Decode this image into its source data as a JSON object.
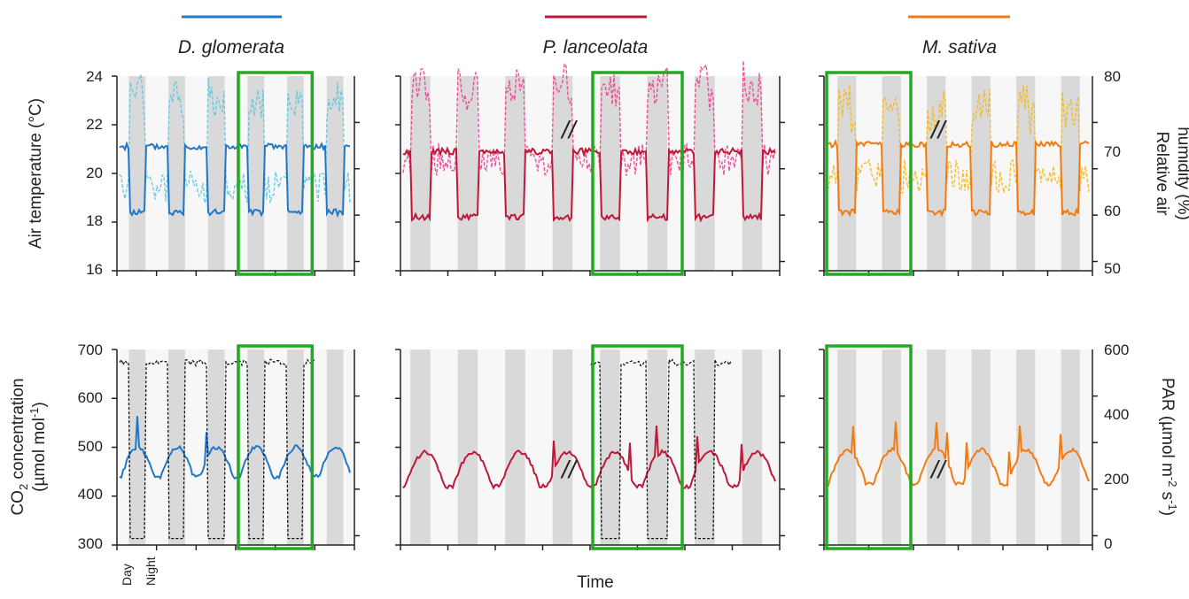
{
  "figure": {
    "x_axis_label": "Time",
    "left_top_axis_label": "Air temperature (°C)",
    "right_top_axis_label_line1": "Relative air",
    "right_top_axis_label_line2": "humidity (%)",
    "left_bottom_axis_label_line1_pre": "CO",
    "left_bottom_axis_label_line1_sub": "2",
    "left_bottom_axis_label_line1_post": " concentration",
    "left_bottom_axis_label_line2_pre": "(µmol mol",
    "left_bottom_axis_label_line2_sup": "-1",
    "left_bottom_axis_label_line2_post": ")",
    "right_bottom_axis_label_pre": "PAR (µmol m",
    "right_bottom_axis_label_sup1": "-2",
    "right_bottom_axis_label_mid": " s",
    "right_bottom_axis_label_sup2": "-1",
    "right_bottom_axis_label_post": ")",
    "day_label": "Day",
    "night_label": "Night",
    "break_mark": "//"
  },
  "colors": {
    "night_band": "#d9d9d9",
    "day_band": "#f7f7f7",
    "highlight_box": "#22aa22",
    "par_line": "#111111"
  },
  "chart_data": [
    {
      "type": "line",
      "species": "D. glomerata",
      "color": "#1f78c8",
      "light_color": "#5fc8e0",
      "row": "top",
      "y_left_ticks": [
        "24",
        "22",
        "20",
        "18",
        "16"
      ],
      "ylim_left": [
        16,
        24
      ],
      "ylim_right": [
        45,
        80
      ],
      "highlight_days": [
        3,
        4
      ],
      "series": [
        {
          "name": "Air temperature",
          "axis": "left",
          "day": 21.1,
          "night": 18.4
        },
        {
          "name": "Relative air humidity",
          "axis": "right",
          "day": 60,
          "night": 74
        }
      ]
    },
    {
      "type": "line",
      "species": "P. lanceolata",
      "color": "#c01838",
      "light_color": "#f04090",
      "row": "top",
      "break_at_day": 3,
      "highlight_days": [
        4,
        5
      ],
      "ylim_left": [
        16,
        24
      ],
      "ylim_right": [
        45,
        80
      ],
      "series": [
        {
          "name": "Air temperature",
          "axis": "left",
          "day": 20.9,
          "night": 18.2
        },
        {
          "name": "Relative air humidity",
          "axis": "right",
          "day": 65,
          "night": 76
        }
      ]
    },
    {
      "type": "line",
      "species": "M. sativa",
      "color": "#f47a10",
      "light_color": "#f5b81a",
      "row": "top",
      "break_at_day": 2,
      "highlight_days": [
        0,
        1
      ],
      "y_right_ticks": [
        "80",
        "70",
        "60",
        "50"
      ],
      "ylim_left": [
        16,
        24
      ],
      "ylim_right": [
        45,
        80
      ],
      "series": [
        {
          "name": "Air temperature",
          "axis": "left",
          "day": 21.2,
          "night": 18.4
        },
        {
          "name": "Relative air humidity",
          "axis": "right",
          "day": 62,
          "night": 72
        }
      ]
    },
    {
      "type": "line",
      "species": "D. glomerata",
      "color": "#1f78c8",
      "row": "bottom",
      "y_left_ticks": [
        "700",
        "600",
        "500",
        "400",
        "300"
      ],
      "ylim_left": [
        300,
        700
      ],
      "ylim_right": [
        0,
        600
      ],
      "highlight_days": [
        3,
        4
      ],
      "series": [
        {
          "name": "CO2 concentration",
          "axis": "left",
          "base": 440,
          "peak": 500
        },
        {
          "name": "PAR",
          "axis": "right",
          "day": 560,
          "night": 20,
          "present_days": [
            0,
            1,
            2,
            3,
            4
          ]
        }
      ]
    },
    {
      "type": "line",
      "species": "P. lanceolata",
      "color": "#c01838",
      "row": "bottom",
      "break_at_day": 3,
      "highlight_days": [
        4,
        5
      ],
      "ylim_left": [
        300,
        700
      ],
      "ylim_right": [
        0,
        600
      ],
      "series": [
        {
          "name": "CO2 concentration",
          "axis": "left",
          "base": 420,
          "peak": 490
        },
        {
          "name": "PAR",
          "axis": "right",
          "day": 560,
          "night": 20,
          "present_days": [
            4,
            5,
            6
          ]
        }
      ]
    },
    {
      "type": "line",
      "species": "M. sativa",
      "color": "#f47a10",
      "row": "bottom",
      "break_at_day": 2,
      "highlight_days": [
        0,
        1
      ],
      "y_right_ticks": [
        "600",
        "400",
        "200",
        "0"
      ],
      "ylim_left": [
        300,
        700
      ],
      "ylim_right": [
        0,
        600
      ],
      "series": [
        {
          "name": "CO2 concentration",
          "axis": "left",
          "base": 425,
          "peak": 495
        },
        {
          "name": "PAR",
          "axis": "right",
          "present_days": []
        }
      ]
    }
  ]
}
